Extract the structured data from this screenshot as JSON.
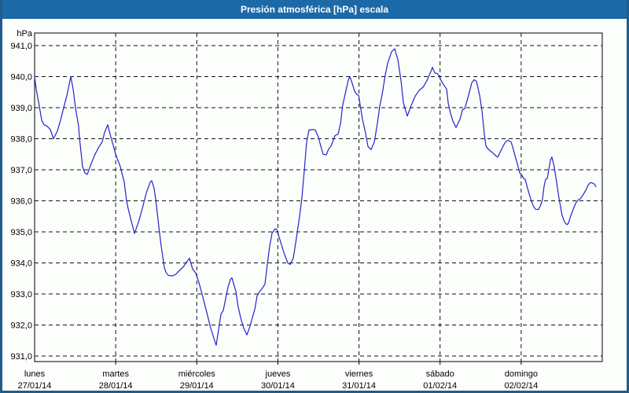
{
  "window": {
    "title": "Presión atmosférica [hPa] escala",
    "titlebar_color": "#1c69a8",
    "border_color": "#1f5c8c",
    "background_color": "#fcfefc"
  },
  "chart_data": {
    "type": "line",
    "title": "Presión atmosférica [hPa] escala",
    "ylabel": "hPa",
    "ylim": [
      931.0,
      941.0
    ],
    "grid": "dashed",
    "line_color": "#2323c8",
    "grid_color": "#111111",
    "y_ticks": [
      {
        "value": 941.0,
        "label": "941,0"
      },
      {
        "value": 940.0,
        "label": "940,0"
      },
      {
        "value": 939.0,
        "label": "939,0"
      },
      {
        "value": 938.0,
        "label": "938,0"
      },
      {
        "value": 937.0,
        "label": "937,0"
      },
      {
        "value": 936.0,
        "label": "936,0"
      },
      {
        "value": 935.0,
        "label": "935,0"
      },
      {
        "value": 934.0,
        "label": "934,0"
      },
      {
        "value": 933.0,
        "label": "933,0"
      },
      {
        "value": 932.0,
        "label": "932,0"
      },
      {
        "value": 931.0,
        "label": "931,0"
      }
    ],
    "x_days": [
      {
        "name": "lunes",
        "date": "27/01/14"
      },
      {
        "name": "martes",
        "date": "28/01/14"
      },
      {
        "name": "miércoles",
        "date": "29/01/14"
      },
      {
        "name": "jueves",
        "date": "30/01/14"
      },
      {
        "name": "viernes",
        "date": "31/01/14"
      },
      {
        "name": "sábado",
        "date": "01/02/14"
      },
      {
        "name": "domingo",
        "date": "02/02/14"
      }
    ],
    "x_range_days": [
      0,
      7
    ],
    "series": [
      {
        "name": "Presión atmosférica",
        "points": [
          [
            0.0,
            940.0
          ],
          [
            0.019,
            939.6
          ],
          [
            0.058,
            939.05
          ],
          [
            0.087,
            938.6
          ],
          [
            0.116,
            938.45
          ],
          [
            0.155,
            938.4
          ],
          [
            0.194,
            938.3
          ],
          [
            0.233,
            938.0
          ],
          [
            0.281,
            938.25
          ],
          [
            0.32,
            938.6
          ],
          [
            0.359,
            939.0
          ],
          [
            0.398,
            939.4
          ],
          [
            0.427,
            939.75
          ],
          [
            0.446,
            940.0
          ],
          [
            0.475,
            939.6
          ],
          [
            0.504,
            939.0
          ],
          [
            0.543,
            938.4
          ],
          [
            0.553,
            938.05
          ],
          [
            0.591,
            937.1
          ],
          [
            0.62,
            936.9
          ],
          [
            0.65,
            936.85
          ],
          [
            0.698,
            937.2
          ],
          [
            0.737,
            937.45
          ],
          [
            0.785,
            937.7
          ],
          [
            0.834,
            937.9
          ],
          [
            0.863,
            938.2
          ],
          [
            0.902,
            938.45
          ],
          [
            0.94,
            938.05
          ],
          [
            0.979,
            937.7
          ],
          [
            0.999,
            937.5
          ],
          [
            1.057,
            937.1
          ],
          [
            1.105,
            936.6
          ],
          [
            1.134,
            936.0
          ],
          [
            1.154,
            935.75
          ],
          [
            1.193,
            935.35
          ],
          [
            1.231,
            934.95
          ],
          [
            1.28,
            935.3
          ],
          [
            1.328,
            935.75
          ],
          [
            1.377,
            936.25
          ],
          [
            1.425,
            936.6
          ],
          [
            1.445,
            936.65
          ],
          [
            1.474,
            936.4
          ],
          [
            1.493,
            936.05
          ],
          [
            1.522,
            935.4
          ],
          [
            1.542,
            934.95
          ],
          [
            1.561,
            934.55
          ],
          [
            1.58,
            934.2
          ],
          [
            1.6,
            933.85
          ],
          [
            1.619,
            933.7
          ],
          [
            1.648,
            933.6
          ],
          [
            1.697,
            933.58
          ],
          [
            1.736,
            933.62
          ],
          [
            1.784,
            933.75
          ],
          [
            1.833,
            933.87
          ],
          [
            1.881,
            934.05
          ],
          [
            1.91,
            934.15
          ],
          [
            1.949,
            933.8
          ],
          [
            1.988,
            933.67
          ],
          [
            2.026,
            933.37
          ],
          [
            2.075,
            932.9
          ],
          [
            2.123,
            932.4
          ],
          [
            2.172,
            931.9
          ],
          [
            2.22,
            931.5
          ],
          [
            2.24,
            931.35
          ],
          [
            2.269,
            931.85
          ],
          [
            2.298,
            932.35
          ],
          [
            2.327,
            932.47
          ],
          [
            2.356,
            932.85
          ],
          [
            2.385,
            933.22
          ],
          [
            2.414,
            933.47
          ],
          [
            2.434,
            933.52
          ],
          [
            2.482,
            933.08
          ],
          [
            2.511,
            932.58
          ],
          [
            2.54,
            932.24
          ],
          [
            2.579,
            931.9
          ],
          [
            2.618,
            931.68
          ],
          [
            2.657,
            931.97
          ],
          [
            2.686,
            932.24
          ],
          [
            2.715,
            932.5
          ],
          [
            2.744,
            932.94
          ],
          [
            2.773,
            933.07
          ],
          [
            2.812,
            933.2
          ],
          [
            2.841,
            933.32
          ],
          [
            2.87,
            933.96
          ],
          [
            2.899,
            934.54
          ],
          [
            2.928,
            934.96
          ],
          [
            2.967,
            935.1
          ],
          [
            2.986,
            935.08
          ],
          [
            3.025,
            934.75
          ],
          [
            3.074,
            934.33
          ],
          [
            3.122,
            934.0
          ],
          [
            3.151,
            933.95
          ],
          [
            3.19,
            934.15
          ],
          [
            3.229,
            934.8
          ],
          [
            3.267,
            935.5
          ],
          [
            3.296,
            936.1
          ],
          [
            3.326,
            937.0
          ],
          [
            3.355,
            937.9
          ],
          [
            3.384,
            938.28
          ],
          [
            3.432,
            938.3
          ],
          [
            3.461,
            938.28
          ],
          [
            3.5,
            938.05
          ],
          [
            3.529,
            937.76
          ],
          [
            3.558,
            937.5
          ],
          [
            3.597,
            937.48
          ],
          [
            3.626,
            937.67
          ],
          [
            3.655,
            937.76
          ],
          [
            3.704,
            938.1
          ],
          [
            3.743,
            938.15
          ],
          [
            3.772,
            938.5
          ],
          [
            3.801,
            939.1
          ],
          [
            3.84,
            939.56
          ],
          [
            3.869,
            939.9
          ],
          [
            3.888,
            940.0
          ],
          [
            3.917,
            939.78
          ],
          [
            3.946,
            939.53
          ],
          [
            3.975,
            939.42
          ],
          [
            3.995,
            939.4
          ],
          [
            4.014,
            939.1
          ],
          [
            4.043,
            938.63
          ],
          [
            4.082,
            938.17
          ],
          [
            4.111,
            937.75
          ],
          [
            4.15,
            937.65
          ],
          [
            4.189,
            937.9
          ],
          [
            4.227,
            938.5
          ],
          [
            4.256,
            939.05
          ],
          [
            4.285,
            939.42
          ],
          [
            4.324,
            940.05
          ],
          [
            4.353,
            940.43
          ],
          [
            4.402,
            940.8
          ],
          [
            4.44,
            940.9
          ],
          [
            4.479,
            940.55
          ],
          [
            4.518,
            939.88
          ],
          [
            4.547,
            939.16
          ],
          [
            4.596,
            938.73
          ],
          [
            4.644,
            939.07
          ],
          [
            4.693,
            939.37
          ],
          [
            4.741,
            939.56
          ],
          [
            4.79,
            939.66
          ],
          [
            4.838,
            939.87
          ],
          [
            4.887,
            940.17
          ],
          [
            4.906,
            940.3
          ],
          [
            4.935,
            940.12
          ],
          [
            4.964,
            940.1
          ],
          [
            4.984,
            940.04
          ],
          [
            5.013,
            939.87
          ],
          [
            5.052,
            939.7
          ],
          [
            5.081,
            939.6
          ],
          [
            5.1,
            939.16
          ],
          [
            5.129,
            938.82
          ],
          [
            5.158,
            938.57
          ],
          [
            5.197,
            938.36
          ],
          [
            5.246,
            938.63
          ],
          [
            5.275,
            938.93
          ],
          [
            5.304,
            938.97
          ],
          [
            5.352,
            939.4
          ],
          [
            5.391,
            939.8
          ],
          [
            5.42,
            939.9
          ],
          [
            5.449,
            939.85
          ],
          [
            5.488,
            939.4
          ],
          [
            5.517,
            938.9
          ],
          [
            5.546,
            938.15
          ],
          [
            5.565,
            937.77
          ],
          [
            5.594,
            937.66
          ],
          [
            5.643,
            937.56
          ],
          [
            5.691,
            937.44
          ],
          [
            5.711,
            937.41
          ],
          [
            5.74,
            937.56
          ],
          [
            5.778,
            937.77
          ],
          [
            5.807,
            937.9
          ],
          [
            5.837,
            937.95
          ],
          [
            5.875,
            937.9
          ],
          [
            5.904,
            937.65
          ],
          [
            5.934,
            937.36
          ],
          [
            5.953,
            937.2
          ],
          [
            5.982,
            936.9
          ],
          [
            6.002,
            936.85
          ],
          [
            6.031,
            936.72
          ],
          [
            6.05,
            936.69
          ],
          [
            6.079,
            936.4
          ],
          [
            6.118,
            936.06
          ],
          [
            6.147,
            935.85
          ],
          [
            6.176,
            935.73
          ],
          [
            6.215,
            935.72
          ],
          [
            6.244,
            935.88
          ],
          [
            6.263,
            936.06
          ],
          [
            6.283,
            936.47
          ],
          [
            6.302,
            936.69
          ],
          [
            6.321,
            936.72
          ],
          [
            6.341,
            937.0
          ],
          [
            6.36,
            937.31
          ],
          [
            6.379,
            937.41
          ],
          [
            6.408,
            937.1
          ],
          [
            6.438,
            936.59
          ],
          [
            6.467,
            936.08
          ],
          [
            6.505,
            935.53
          ],
          [
            6.535,
            935.32
          ],
          [
            6.564,
            935.23
          ],
          [
            6.583,
            935.28
          ],
          [
            6.612,
            935.53
          ],
          [
            6.651,
            935.79
          ],
          [
            6.68,
            935.96
          ],
          [
            6.709,
            936.04
          ],
          [
            6.728,
            936.06
          ],
          [
            6.758,
            936.17
          ],
          [
            6.796,
            936.34
          ],
          [
            6.826,
            936.51
          ],
          [
            6.855,
            936.59
          ],
          [
            6.893,
            936.56
          ],
          [
            6.922,
            936.46
          ]
        ]
      }
    ]
  }
}
